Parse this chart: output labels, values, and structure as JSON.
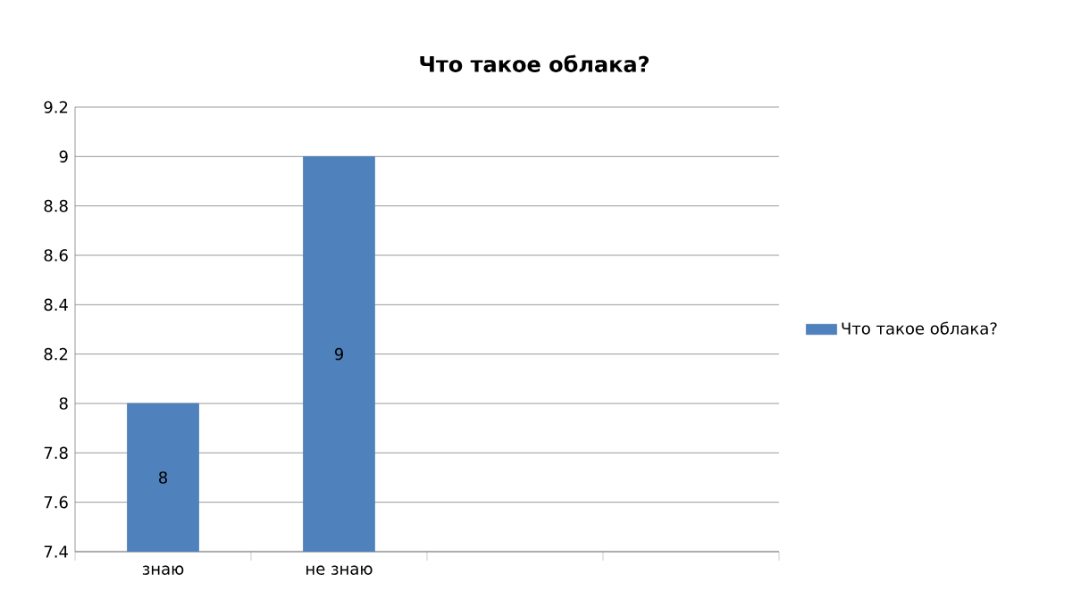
{
  "chart_data": {
    "type": "bar",
    "title": "Что такое облака?",
    "categories": [
      "знаю",
      "не знаю",
      null,
      null
    ],
    "series": [
      {
        "name": "Что такое облака?",
        "color": "#4f81bd",
        "values": [
          8,
          9,
          null,
          null
        ]
      }
    ],
    "ylim": [
      7.4,
      9.2
    ],
    "yticks": [
      7.4,
      7.6,
      7.8,
      8,
      8.2,
      8.4,
      8.6,
      8.8,
      9,
      9.2
    ],
    "grid": "y",
    "legend": "right",
    "data_labels": true
  }
}
